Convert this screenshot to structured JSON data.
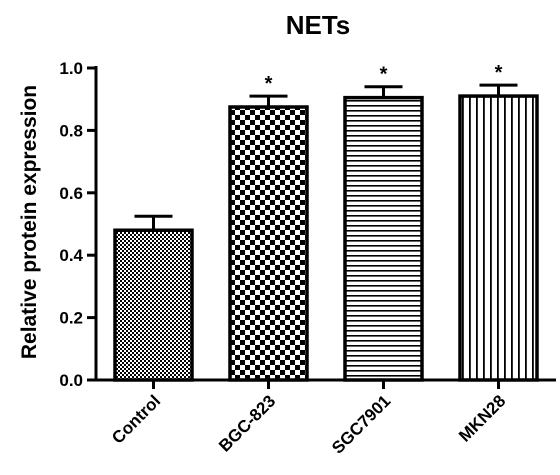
{
  "chart_data": {
    "type": "bar",
    "title": "NETs",
    "xlabel": "",
    "ylabel": "Relative protein expression",
    "categories": [
      "Control",
      "BGC-823",
      "SGC7901",
      "MKN28"
    ],
    "values": [
      0.48,
      0.875,
      0.905,
      0.91
    ],
    "errors": [
      0.045,
      0.035,
      0.035,
      0.035
    ],
    "significance": [
      "",
      "*",
      "*",
      "*"
    ],
    "patterns": [
      "fine-checker",
      "coarse-checker",
      "horizontal-lines",
      "vertical-lines"
    ],
    "ylim": [
      0,
      1.0
    ],
    "yticks": [
      "0.0",
      "0.2",
      "0.4",
      "0.6",
      "0.8",
      "1.0"
    ],
    "grid": false,
    "legend": "none"
  }
}
